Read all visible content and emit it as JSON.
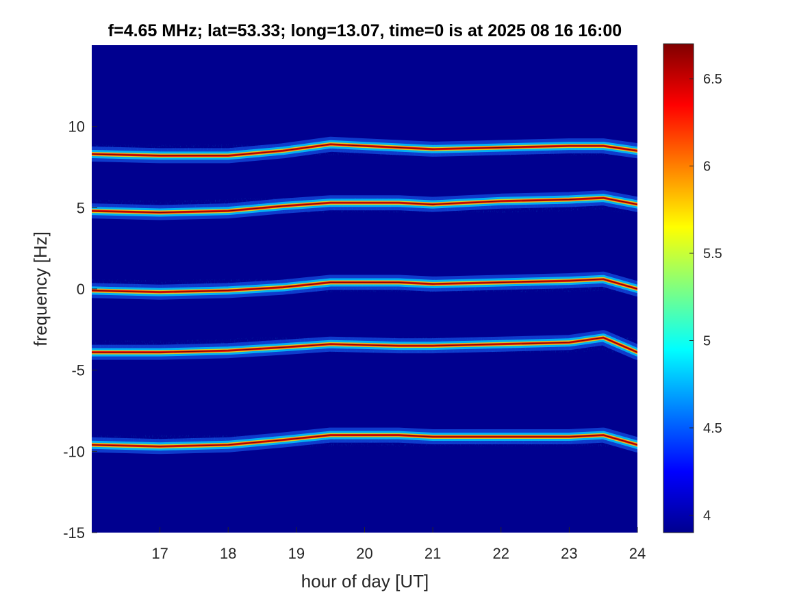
{
  "chart_data": {
    "type": "heatmap",
    "title": "f=4.65 MHz;  lat=53.33; long=13.07, time=0 is at 2025 08 16 16:00",
    "xlabel": "hour of day [UT]",
    "ylabel": "frequency [Hz]",
    "xlim": [
      16,
      24
    ],
    "ylim": [
      -15,
      15
    ],
    "xticks": [
      17,
      18,
      19,
      20,
      21,
      22,
      23,
      24
    ],
    "yticks": [
      -15,
      -10,
      -5,
      0,
      5,
      10
    ],
    "colormap": "jet",
    "clim": [
      3.9,
      6.7
    ],
    "colorbar_ticks": [
      4,
      4.5,
      5,
      5.5,
      6,
      6.5
    ],
    "background_color": "#00008f",
    "series": [
      {
        "x": [
          16,
          17,
          18,
          18.8,
          19.5,
          20.5,
          21,
          22,
          23,
          23.5,
          24
        ],
        "y": [
          8.3,
          8.2,
          8.2,
          8.5,
          8.9,
          8.7,
          8.6,
          8.7,
          8.8,
          8.8,
          8.5
        ]
      },
      {
        "x": [
          16,
          17,
          18,
          18.8,
          19.5,
          20.5,
          21,
          22,
          23,
          23.5,
          24
        ],
        "y": [
          4.8,
          4.7,
          4.8,
          5.1,
          5.3,
          5.3,
          5.2,
          5.4,
          5.5,
          5.6,
          5.2
        ]
      },
      {
        "x": [
          16,
          17,
          18,
          18.8,
          19.5,
          20.5,
          21,
          22,
          23,
          23.5,
          24
        ],
        "y": [
          -0.1,
          -0.2,
          -0.1,
          0.1,
          0.4,
          0.4,
          0.3,
          0.4,
          0.5,
          0.6,
          0.0
        ]
      },
      {
        "x": [
          16,
          17,
          18,
          18.8,
          19.5,
          20.5,
          21,
          22,
          23,
          23.5,
          24
        ],
        "y": [
          -3.9,
          -3.9,
          -3.8,
          -3.6,
          -3.4,
          -3.5,
          -3.5,
          -3.4,
          -3.3,
          -3.0,
          -3.9
        ]
      },
      {
        "x": [
          16,
          17,
          18,
          18.8,
          19.5,
          20.5,
          21,
          22,
          23,
          23.5,
          24
        ],
        "y": [
          -9.6,
          -9.7,
          -9.6,
          -9.3,
          -9.0,
          -9.0,
          -9.1,
          -9.1,
          -9.1,
          -9.0,
          -9.6
        ]
      }
    ]
  }
}
